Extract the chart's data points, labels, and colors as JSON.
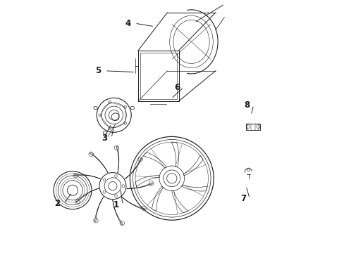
{
  "bg_color": "#ffffff",
  "line_color": "#1a1a1a",
  "fig_width": 4.89,
  "fig_height": 3.6,
  "dpi": 100,
  "label_positions": {
    "1": [
      0.305,
      0.19,
      0.295,
      0.255
    ],
    "2": [
      0.072,
      0.195,
      0.105,
      0.24
    ],
    "3": [
      0.26,
      0.455,
      0.27,
      0.505
    ],
    "4": [
      0.352,
      0.908,
      0.43,
      0.895
    ],
    "5": [
      0.235,
      0.72,
      0.355,
      0.715
    ],
    "6": [
      0.545,
      0.655,
      0.495,
      0.61
    ],
    "7": [
      0.805,
      0.215,
      0.79,
      0.265
    ],
    "8": [
      0.82,
      0.585,
      0.81,
      0.545
    ]
  }
}
